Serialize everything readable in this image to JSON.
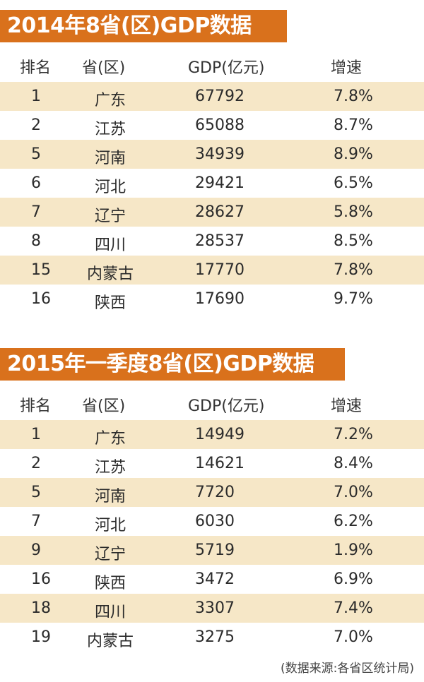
{
  "colors": {
    "title_bg": "#d9711c",
    "row_shade": "#f6e7c7"
  },
  "table_2014": {
    "title": "2014年8省(区)GDP数据",
    "headers": [
      "排名",
      "省(区)",
      "GDP(亿元)",
      "增速"
    ],
    "rows": [
      [
        "1",
        "广东",
        "67792",
        "7.8%"
      ],
      [
        "2",
        "江苏",
        "65088",
        "8.7%"
      ],
      [
        "5",
        "河南",
        "34939",
        "8.9%"
      ],
      [
        "6",
        "河北",
        "29421",
        "6.5%"
      ],
      [
        "7",
        "辽宁",
        "28627",
        "5.8%"
      ],
      [
        "8",
        "四川",
        "28537",
        "8.5%"
      ],
      [
        "15",
        "内蒙古",
        "17770",
        "7.8%"
      ],
      [
        "16",
        "陕西",
        "17690",
        "9.7%"
      ]
    ]
  },
  "table_2015q1": {
    "title": "2015年一季度8省(区)GDP数据",
    "headers": [
      "排名",
      "省(区)",
      "GDP(亿元)",
      "增速"
    ],
    "rows": [
      [
        "1",
        "广东",
        "14949",
        "7.2%"
      ],
      [
        "2",
        "江苏",
        "14621",
        "8.4%"
      ],
      [
        "5",
        "河南",
        "7720",
        "7.0%"
      ],
      [
        "7",
        "河北",
        "6030",
        "6.2%"
      ],
      [
        "9",
        "辽宁",
        "5719",
        "1.9%"
      ],
      [
        "16",
        "陕西",
        "3472",
        "6.9%"
      ],
      [
        "18",
        "四川",
        "3307",
        "7.4%"
      ],
      [
        "19",
        "内蒙古",
        "3275",
        "7.0%"
      ]
    ]
  },
  "footer": {
    "source": "(数据来源:各省区统计局)"
  }
}
